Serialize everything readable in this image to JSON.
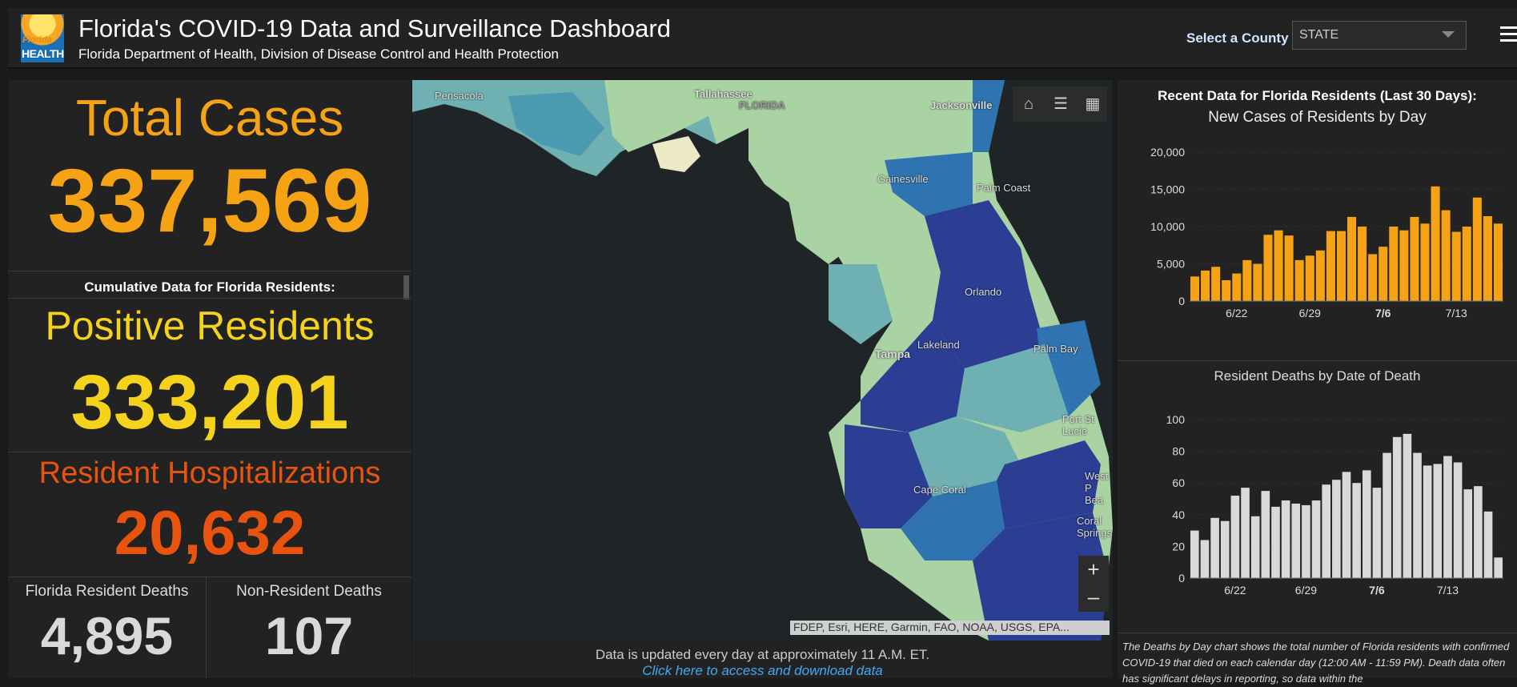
{
  "header": {
    "logo_line1": "Florida",
    "logo_line2": "HEALTH",
    "title": "Florida's COVID-19 Data and Surveillance Dashboard",
    "subtitle": "Florida Department of Health, Division of Disease Control and Health Protection",
    "county_label": "Select a County",
    "county_value": "STATE"
  },
  "stats": {
    "total_cases_label": "Total Cases",
    "total_cases_value": "337,569",
    "cumulative_label": "Cumulative Data for Florida Residents:",
    "positive_label": "Positive Residents",
    "positive_value": "333,201",
    "hosp_label": "Resident Hospitalizations",
    "hosp_value": "20,632",
    "res_deaths_label": "Florida Resident Deaths",
    "res_deaths_value": "4,895",
    "nonres_deaths_label": "Non-Resident Deaths",
    "nonres_deaths_value": "107"
  },
  "colors": {
    "total": "#f5a214",
    "positive": "#f5d31c",
    "hosp": "#e8540f",
    "deaths": "#d9d9d9",
    "bar_cases": "#f5a214",
    "bar_deaths": "#d9d9d9"
  },
  "map": {
    "labels": [
      "Pensacola",
      "Tallahassee",
      "FLORIDA",
      "Jacksonville",
      "Gainesville",
      "Palm Coast",
      "Orlando",
      "Lakeland",
      "Tampa",
      "Palm Bay",
      "Port St Lucie",
      "West P Bea",
      "Cape Coral",
      "Coral Springs"
    ],
    "attribution": "FDEP, Esri, HERE, Garmin, FAO, NOAA, USGS, EPA...",
    "controls": [
      "home-icon",
      "legend-list-icon",
      "basemap-grid-icon"
    ],
    "zoom_in": "+",
    "zoom_out": "–"
  },
  "footer": {
    "update_text": "Data is updated every day at approximately 11 A.M. ET.",
    "download_link": "Click here to access and download data"
  },
  "right": {
    "section_title": "Recent Data for Florida Residents (Last 30 Days):",
    "note": "The Deaths by Day chart shows the total number of Florida residents with confirmed COVID-19 that died on each calendar day (12:00 AM - 11:59 PM). Death data often has significant delays in reporting, so data within the"
  },
  "chart_data": [
    {
      "type": "bar",
      "title": "New Cases of Residents by Day",
      "x_tick_labels": [
        "6/22",
        "6/29",
        "7/6",
        "7/13"
      ],
      "ylim": [
        0,
        20000
      ],
      "y_ticks": [
        "0",
        "5,000",
        "10,000",
        "15,000",
        "20,000"
      ],
      "values": [
        3300,
        4100,
        4600,
        2800,
        3700,
        5500,
        5000,
        8900,
        9500,
        8800,
        5500,
        6100,
        6800,
        9400,
        9400,
        11300,
        10000,
        6300,
        7300,
        10000,
        9500,
        11300,
        10400,
        15400,
        12200,
        9300,
        10000,
        13900,
        11400,
        10400
      ]
    },
    {
      "type": "bar",
      "title": "Resident Deaths by Date of Death",
      "x_tick_labels": [
        "6/22",
        "6/29",
        "7/6",
        "7/13"
      ],
      "ylim": [
        0,
        100
      ],
      "y_ticks": [
        "0",
        "20",
        "40",
        "60",
        "80",
        "100"
      ],
      "values": [
        30,
        24,
        38,
        36,
        52,
        57,
        39,
        55,
        45,
        49,
        47,
        46,
        49,
        59,
        62,
        67,
        60,
        68,
        57,
        79,
        89,
        91,
        79,
        71,
        72,
        77,
        73,
        56,
        58,
        42,
        13
      ]
    }
  ]
}
